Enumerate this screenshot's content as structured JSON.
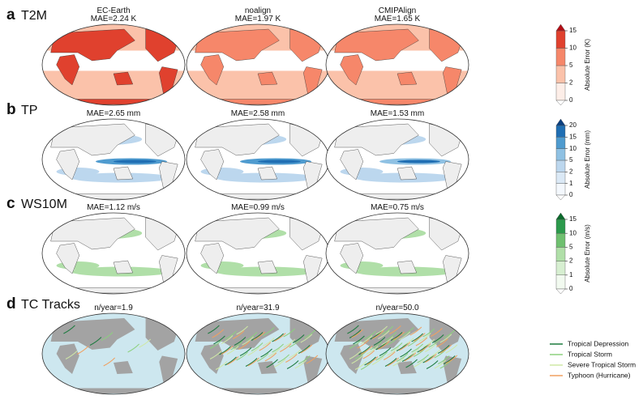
{
  "rows": [
    {
      "letter": "a",
      "title": "T2M",
      "panels": [
        {
          "name": "EC-Earth",
          "metric": "MAE=2.24 K"
        },
        {
          "name": "noalign",
          "metric": "MAE=1.97 K"
        },
        {
          "name": "CMIPAlign",
          "metric": "MAE=1.65 K"
        }
      ],
      "colorbar": {
        "label": "Absolute Error (K)",
        "ticks": [
          0,
          2,
          5,
          10,
          15
        ],
        "colors": [
          "#fdeee8",
          "#fbc2aa",
          "#f6876a",
          "#e0412e",
          "#b30f16"
        ]
      }
    },
    {
      "letter": "b",
      "title": "TP",
      "panels": [
        {
          "metric": "MAE=2.65 mm"
        },
        {
          "metric": "MAE=2.58 mm"
        },
        {
          "metric": "MAE=1.53 mm"
        }
      ],
      "colorbar": {
        "label": "Absolute Error (mm)",
        "ticks": [
          0,
          1,
          2,
          5,
          10,
          15,
          20
        ],
        "colors": [
          "#f4f8fd",
          "#dbe9f6",
          "#bcd7ee",
          "#8fc1e3",
          "#4f9bcf",
          "#1f6eb3",
          "#0b3f80"
        ]
      }
    },
    {
      "letter": "c",
      "title": "WS10M",
      "panels": [
        {
          "metric": "MAE=1.12 m/s"
        },
        {
          "metric": "MAE=0.99 m/s"
        },
        {
          "metric": "MAE=0.75 m/s"
        }
      ],
      "colorbar": {
        "label": "Absolute Error (m/s)",
        "ticks": [
          0,
          1,
          2,
          5,
          10,
          15
        ],
        "colors": [
          "#f2faf0",
          "#d7efd1",
          "#b0dfa8",
          "#6fc06f",
          "#2c9a4c",
          "#0b6a2c"
        ]
      }
    },
    {
      "letter": "d",
      "title": "TC Tracks",
      "panels": [
        {
          "metric": "n/year=1.9"
        },
        {
          "metric": "n/year=31.9"
        },
        {
          "metric": "n/year=50.0"
        }
      ],
      "legend": [
        {
          "name": "Tropical Depression",
          "color": "#1b7a3e"
        },
        {
          "name": "Tropical Storm",
          "color": "#8cd07e"
        },
        {
          "name": "Severe Tropical Storm",
          "color": "#cfe8a6"
        },
        {
          "name": "Typhoon (Hurricane)",
          "color": "#f0a060"
        }
      ]
    }
  ]
}
